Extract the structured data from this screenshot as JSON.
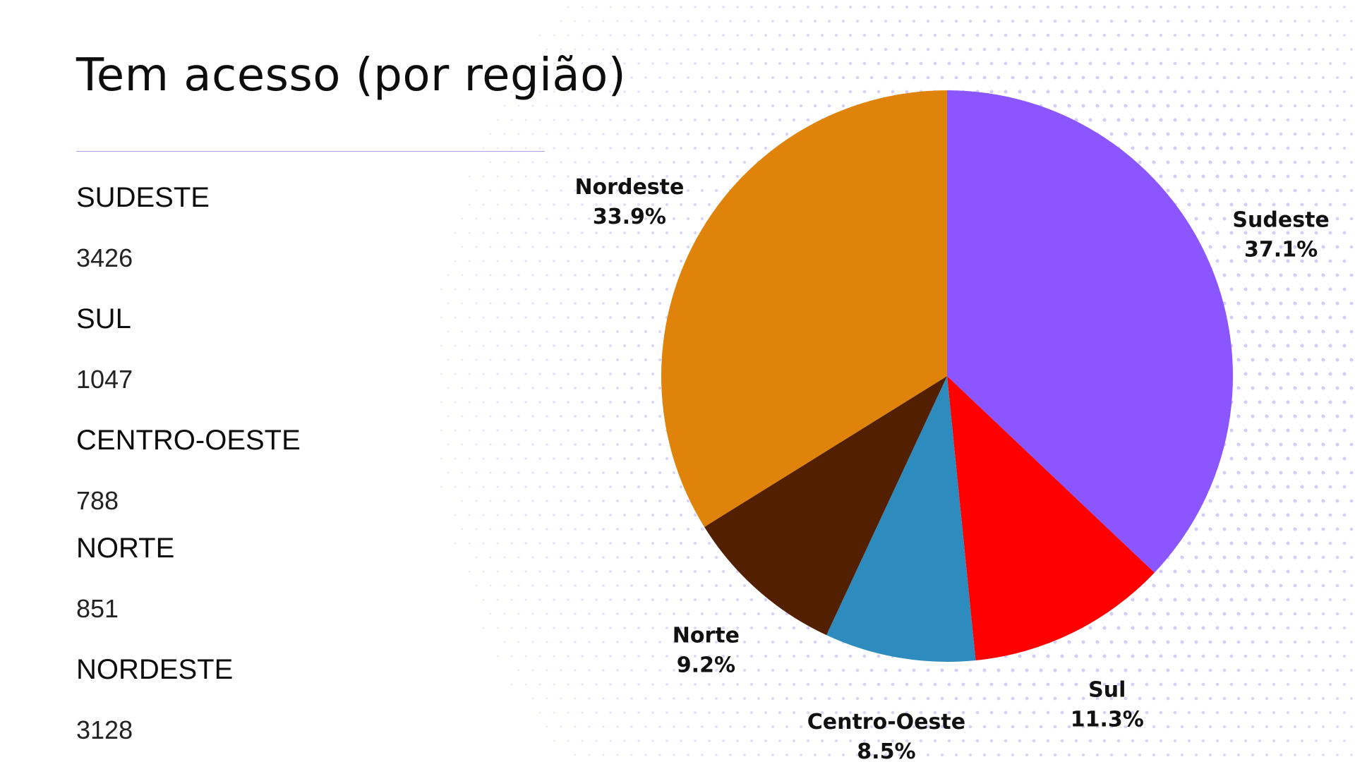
{
  "header": {
    "title": "Tem acesso (por região)"
  },
  "regions": [
    {
      "name": "SUDESTE",
      "value": "3426"
    },
    {
      "name": "SUL",
      "value": "1047"
    },
    {
      "name": "CENTRO-OESTE",
      "value": "788"
    },
    {
      "name": "NORTE",
      "value": "851"
    },
    {
      "name": "NORDESTE",
      "value": "3128"
    }
  ],
  "chart_data": {
    "type": "pie",
    "categories": [
      "Sudeste",
      "Sul",
      "Centro-Oeste",
      "Norte",
      "Nordeste"
    ],
    "values": [
      3426,
      1047,
      788,
      851,
      3128
    ],
    "percent_labels": [
      "37.1%",
      "11.3%",
      "8.5%",
      "9.2%",
      "33.9%"
    ],
    "colors": [
      "#8b55ff",
      "#ff0000",
      "#2e8bbd",
      "#522000",
      "#df830a"
    ],
    "title": ""
  }
}
